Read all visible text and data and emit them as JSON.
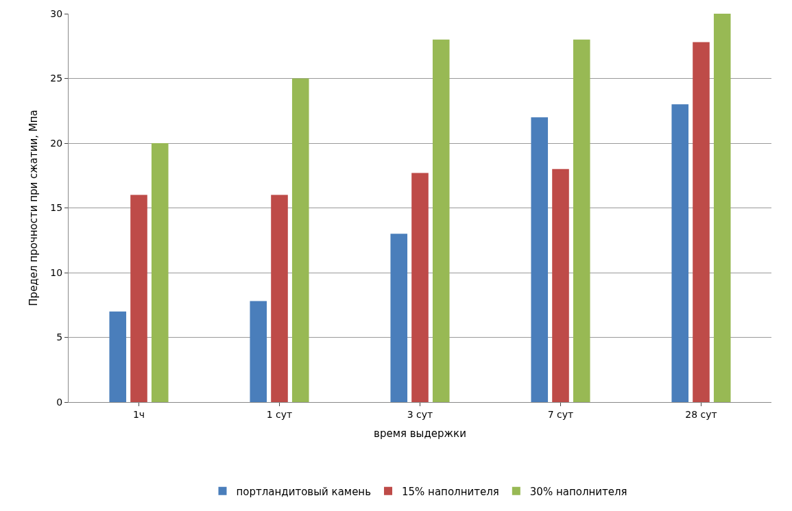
{
  "chart_data": {
    "type": "bar",
    "xlabel": "время выдержки",
    "ylabel": "Предел прочности при сжатии, Мпа",
    "categories": [
      "1ч",
      "1 сут",
      "3 сут",
      "7 сут",
      "28 сут"
    ],
    "series": [
      {
        "name": "портландитовый камень",
        "color": "#4a7ebb",
        "values": [
          7,
          7.8,
          13,
          22,
          23
        ]
      },
      {
        "name": "15% наполнителя",
        "color": "#be4b48",
        "values": [
          16,
          16,
          17.7,
          18,
          27.8
        ]
      },
      {
        "name": "30% наполнителя",
        "color": "#98b954",
        "values": [
          20,
          25,
          28,
          28,
          30
        ]
      }
    ],
    "ylim": [
      0,
      30
    ],
    "yticks": [
      0,
      5,
      10,
      15,
      20,
      25,
      30
    ],
    "grid": "y",
    "legend": "bottom"
  }
}
